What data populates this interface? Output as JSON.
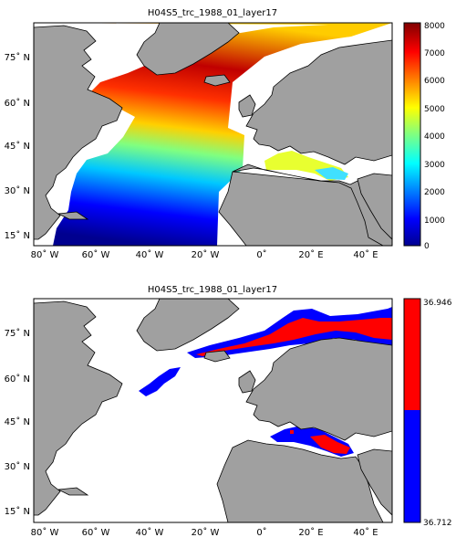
{
  "panels": [
    {
      "title": "H04S5_trc_1988_01_layer17",
      "x_ticks": [
        "80˚ W",
        "60˚ W",
        "40˚ W",
        "20˚ W",
        "0˚",
        "20˚ E",
        "40˚ E"
      ],
      "y_ticks": [
        "75˚ N",
        "60˚ N",
        "45˚ N",
        "30˚ N",
        "15˚ N"
      ],
      "colorbar": {
        "type": "continuous jet",
        "ticks": [
          "0",
          "1000",
          "2000",
          "3000",
          "4000",
          "5000",
          "6000",
          "7000",
          "8000"
        ]
      }
    },
    {
      "title": "H04S5_trc_1988_01_layer17",
      "x_ticks": [
        "80˚ W",
        "60˚ W",
        "40˚ W",
        "20˚ W",
        "0˚",
        "20˚ E",
        "40˚ E"
      ],
      "y_ticks": [
        "75˚ N",
        "60˚ N",
        "45˚ N",
        "30˚ N",
        "15˚ N"
      ],
      "colorbar": {
        "type": "two-class",
        "top_label": "36.946",
        "bottom_label": "36.712",
        "top_color": "#ff0000",
        "bottom_color": "#0000ff"
      }
    }
  ],
  "colors": {
    "land": "#a0a0a0",
    "coast": "#000000",
    "nodata": "#ffffff"
  }
}
